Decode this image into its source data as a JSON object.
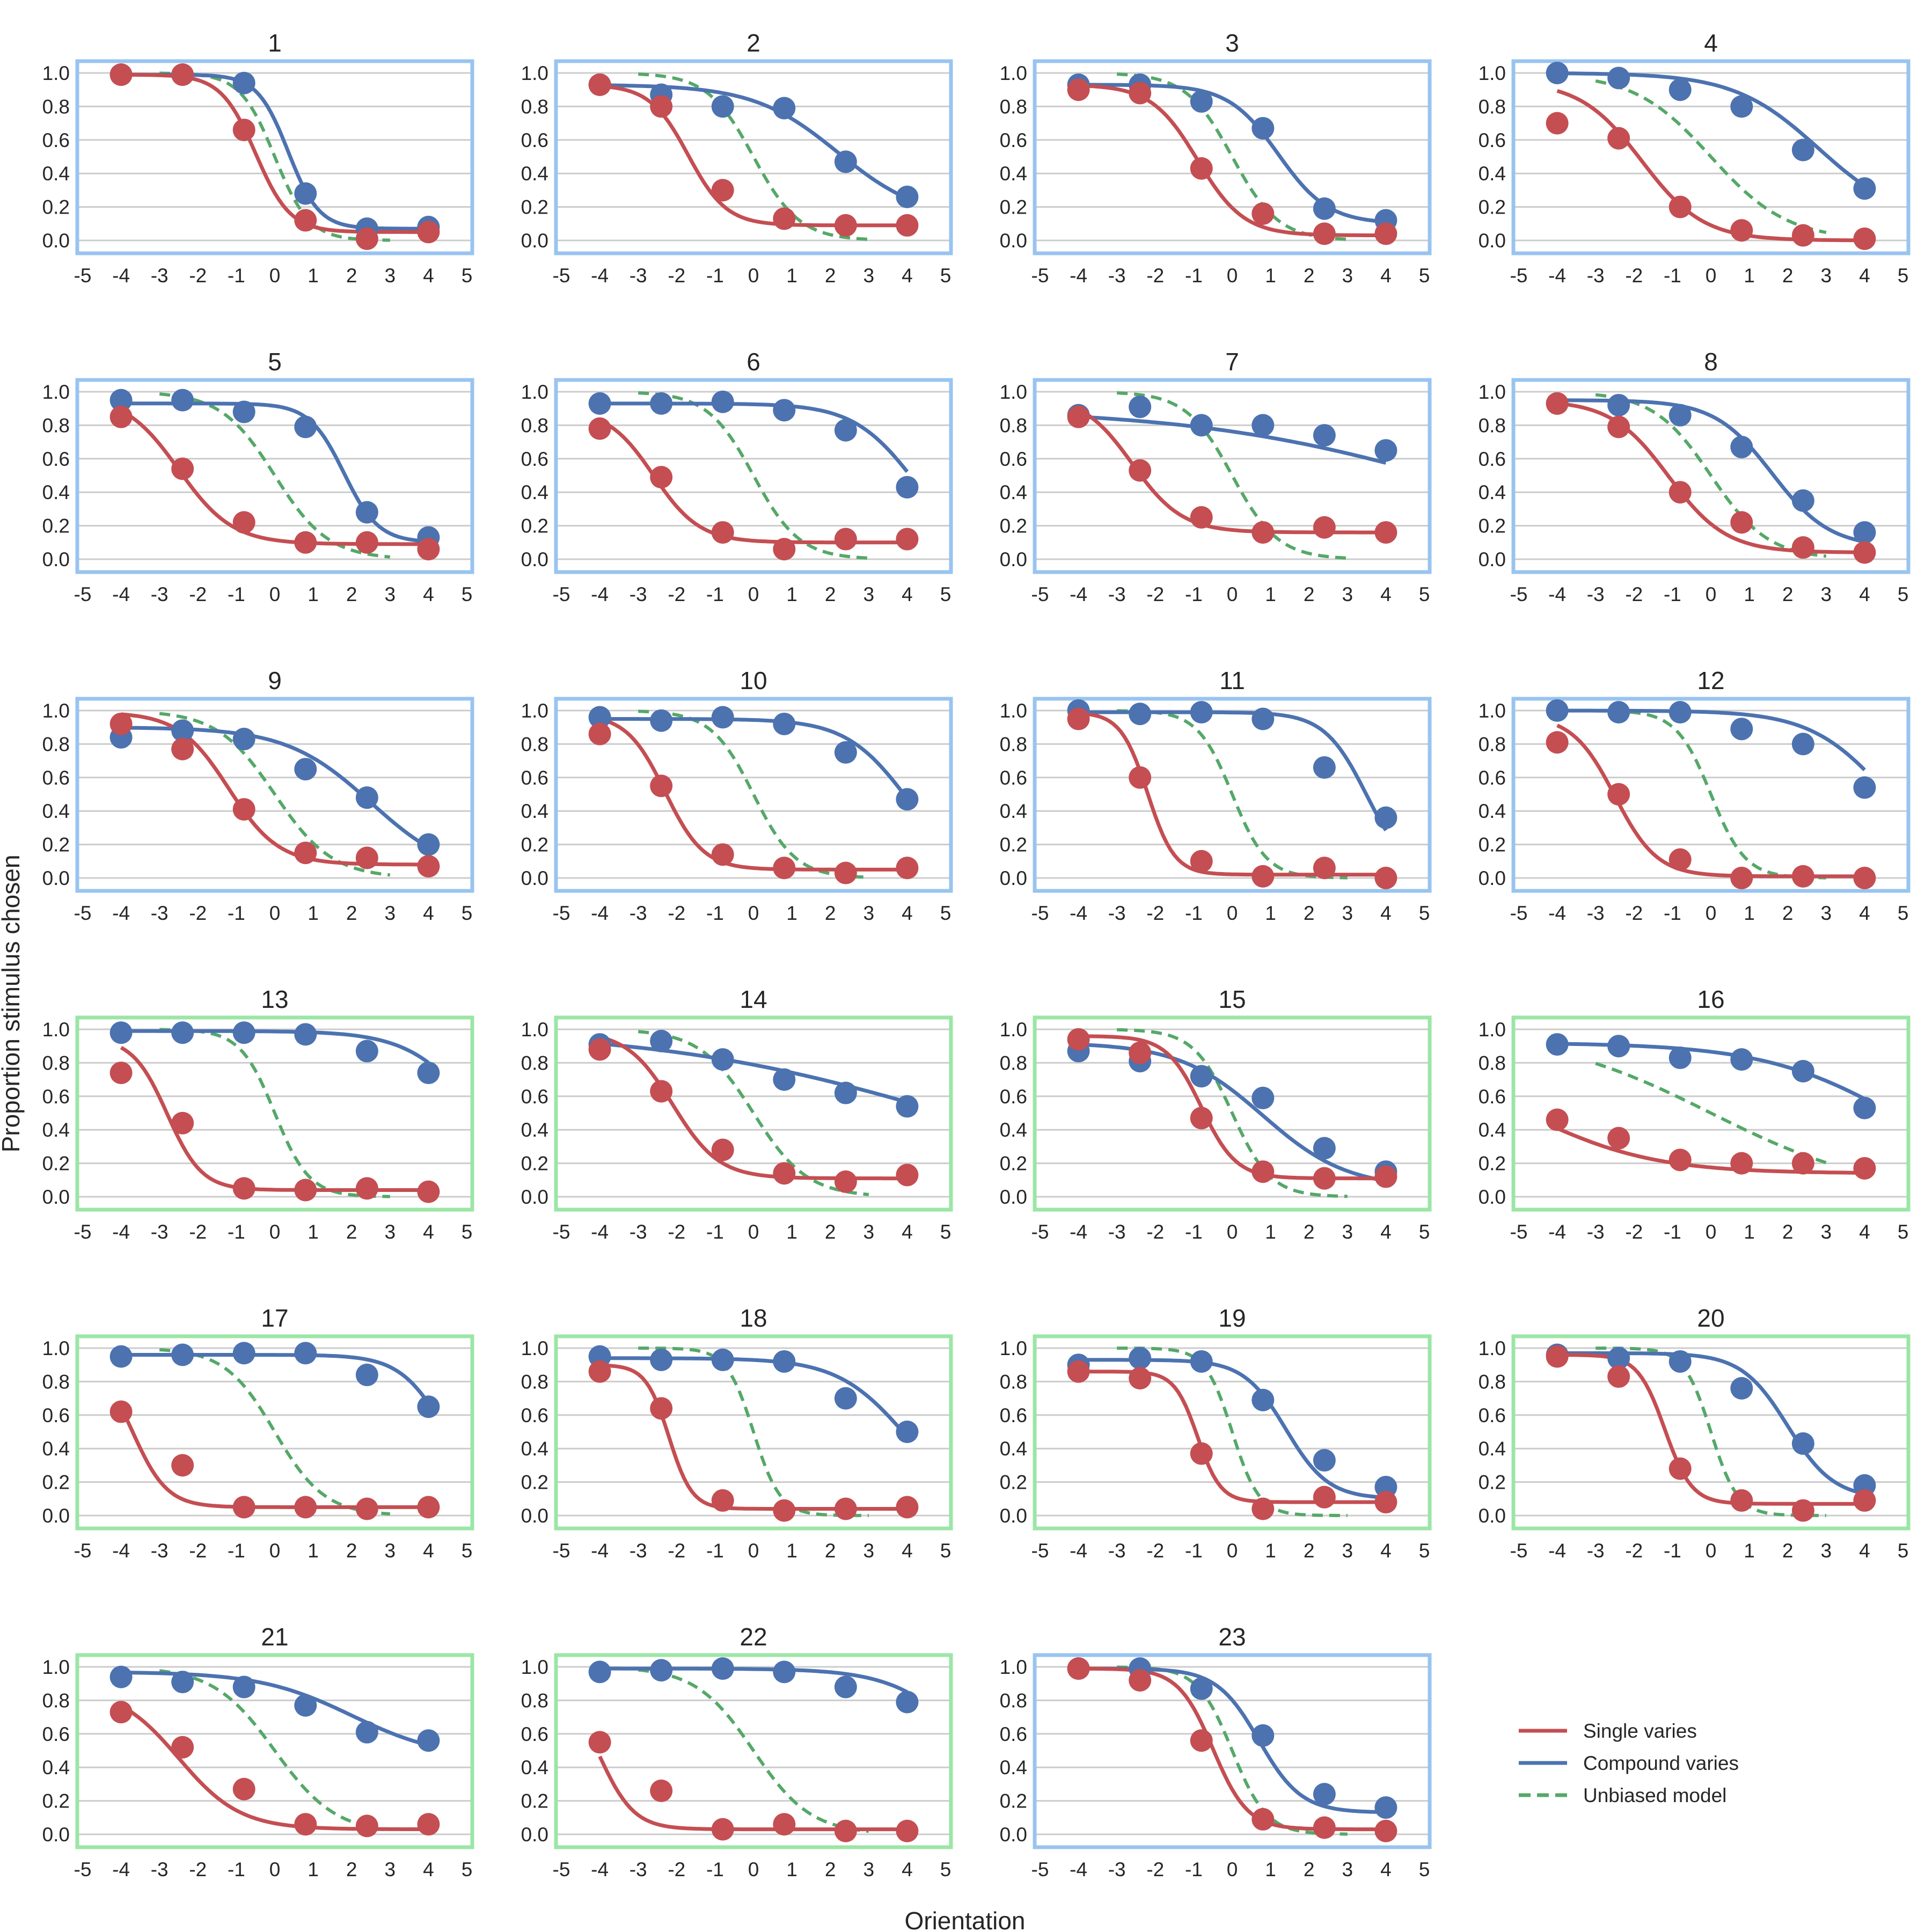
{
  "chart_data": {
    "type": "line",
    "description_free": true,
    "xlabel": "Orientation",
    "ylabel": "Proportion stimulus chosen",
    "xlim": [
      -5,
      5
    ],
    "ylim": [
      0,
      1
    ],
    "x_ticks": [
      -5,
      -4,
      -3,
      -2,
      -1,
      0,
      1,
      2,
      3,
      4,
      5
    ],
    "y_ticks": [
      0.0,
      0.2,
      0.4,
      0.6,
      0.8,
      1.0
    ],
    "grid": "horizontal",
    "legend_position": "bottom-right",
    "legend": [
      {
        "key": "single",
        "label": "Single varies",
        "color": "#c44e52",
        "style": "solid"
      },
      {
        "key": "compound",
        "label": "Compound varies",
        "color": "#4c72b0",
        "style": "solid"
      },
      {
        "key": "unbiased",
        "label": "Unbiased model",
        "color": "#55a868",
        "style": "dashed"
      }
    ],
    "frame_colors": {
      "blue": "#99c4f0",
      "green": "#9be6a6"
    },
    "x_points": [
      -4,
      -2.4,
      -0.8,
      0.8,
      2.4,
      4
    ],
    "panels": [
      {
        "title": "1",
        "frame": "blue",
        "single": [
          0.99,
          0.99,
          0.66,
          0.12,
          0.01,
          0.05
        ],
        "compound": [
          0.99,
          0.99,
          0.94,
          0.28,
          0.07,
          0.08
        ],
        "fit_single": [
          0.99,
          0.05,
          -0.5,
          0.45
        ],
        "fit_compound": [
          0.99,
          0.07,
          0.35,
          0.4
        ],
        "unbiased": [
          -3.0,
          3.0,
          0.0,
          0.45
        ]
      },
      {
        "title": "2",
        "frame": "blue",
        "single": [
          0.93,
          0.8,
          0.3,
          0.13,
          0.09,
          0.09
        ],
        "compound": [
          0.93,
          0.87,
          0.8,
          0.79,
          0.47,
          0.26
        ],
        "fit_single": [
          0.93,
          0.09,
          -1.7,
          0.5
        ],
        "fit_compound": [
          0.93,
          0.12,
          2.2,
          1.1
        ],
        "unbiased": [
          -3.0,
          3.0,
          0.0,
          0.6
        ]
      },
      {
        "title": "3",
        "frame": "blue",
        "single": [
          0.9,
          0.88,
          0.43,
          0.16,
          0.04,
          0.04
        ],
        "compound": [
          0.93,
          0.93,
          0.83,
          0.67,
          0.19,
          0.12
        ],
        "fit_single": [
          0.93,
          0.03,
          -0.9,
          0.6
        ],
        "fit_compound": [
          0.93,
          0.1,
          1.2,
          0.65
        ],
        "unbiased": [
          -3.0,
          3.0,
          0.0,
          0.6
        ]
      },
      {
        "title": "4",
        "frame": "blue",
        "single": [
          0.7,
          0.61,
          0.2,
          0.06,
          0.03,
          0.01
        ],
        "compound": [
          1.0,
          0.97,
          0.9,
          0.8,
          0.54,
          0.31
        ],
        "fit_single": [
          0.95,
          0.0,
          -1.8,
          0.8
        ],
        "fit_compound": [
          1.0,
          0.1,
          2.8,
          1.1
        ],
        "unbiased": [
          -3.0,
          3.0,
          0.0,
          1.0
        ]
      },
      {
        "title": "5",
        "frame": "blue",
        "single": [
          0.85,
          0.54,
          0.22,
          0.1,
          0.1,
          0.06
        ],
        "compound": [
          0.95,
          0.95,
          0.88,
          0.79,
          0.28,
          0.13
        ],
        "fit_single": [
          0.98,
          0.09,
          -2.5,
          0.7
        ],
        "fit_compound": [
          0.93,
          0.1,
          1.8,
          0.45
        ],
        "unbiased": [
          -3.0,
          3.0,
          0.0,
          0.7
        ]
      },
      {
        "title": "6",
        "frame": "blue",
        "single": [
          0.78,
          0.49,
          0.16,
          0.06,
          0.12,
          0.12
        ],
        "compound": [
          0.93,
          0.93,
          0.94,
          0.89,
          0.77,
          0.43
        ],
        "fit_single": [
          0.9,
          0.1,
          -2.6,
          0.6
        ],
        "fit_compound": [
          0.93,
          0.0,
          4.2,
          0.8
        ],
        "unbiased": [
          -3.0,
          3.0,
          0.0,
          0.6
        ]
      },
      {
        "title": "7",
        "frame": "blue",
        "single": [
          0.85,
          0.53,
          0.25,
          0.16,
          0.19,
          0.16
        ],
        "compound": [
          0.86,
          0.91,
          0.8,
          0.8,
          0.74,
          0.65
        ],
        "fit_single": [
          0.98,
          0.16,
          -2.6,
          0.65
        ],
        "fit_compound": [
          0.9,
          0.0,
          6.0,
          3.5
        ],
        "unbiased": [
          -3.0,
          3.0,
          0.0,
          0.6
        ]
      },
      {
        "title": "8",
        "frame": "blue",
        "single": [
          0.93,
          0.79,
          0.4,
          0.22,
          0.07,
          0.04
        ],
        "compound": [
          0.93,
          0.92,
          0.86,
          0.67,
          0.35,
          0.16
        ],
        "fit_single": [
          0.95,
          0.04,
          -1.1,
          0.75
        ],
        "fit_compound": [
          0.95,
          0.07,
          1.6,
          0.75
        ],
        "unbiased": [
          -3.0,
          3.0,
          0.0,
          0.75
        ]
      },
      {
        "title": "9",
        "frame": "blue",
        "single": [
          0.92,
          0.77,
          0.41,
          0.15,
          0.12,
          0.07
        ],
        "compound": [
          0.84,
          0.88,
          0.83,
          0.65,
          0.48,
          0.2
        ],
        "fit_single": [
          0.99,
          0.08,
          -1.2,
          0.65
        ],
        "fit_compound": [
          0.9,
          0.0,
          2.5,
          1.1
        ],
        "unbiased": [
          -3.0,
          3.0,
          0.0,
          0.75
        ]
      },
      {
        "title": "10",
        "frame": "blue",
        "single": [
          0.86,
          0.55,
          0.14,
          0.06,
          0.03,
          0.06
        ],
        "compound": [
          0.96,
          0.94,
          0.96,
          0.92,
          0.75,
          0.47
        ],
        "fit_single": [
          0.98,
          0.05,
          -2.3,
          0.5
        ],
        "fit_compound": [
          0.95,
          0.0,
          4.0,
          0.8
        ],
        "unbiased": [
          -3.0,
          3.0,
          0.0,
          0.55
        ]
      },
      {
        "title": "11",
        "frame": "blue",
        "single": [
          0.95,
          0.6,
          0.1,
          0.01,
          0.06,
          0.0
        ],
        "compound": [
          1.0,
          0.98,
          0.99,
          0.95,
          0.66,
          0.36
        ],
        "fit_single": [
          0.99,
          0.02,
          -2.2,
          0.35
        ],
        "fit_compound": [
          0.99,
          0.0,
          3.5,
          0.55
        ],
        "unbiased": [
          -3.0,
          3.0,
          0.0,
          0.45
        ]
      },
      {
        "title": "12",
        "frame": "blue",
        "single": [
          0.81,
          0.5,
          0.11,
          0.0,
          0.01,
          0.0
        ],
        "compound": [
          1.0,
          0.99,
          0.99,
          0.89,
          0.8,
          0.54
        ],
        "fit_single": [
          0.97,
          0.01,
          -2.5,
          0.55
        ],
        "fit_compound": [
          1.0,
          0.0,
          4.6,
          1.0
        ],
        "unbiased": [
          -3.0,
          3.0,
          0.0,
          0.45
        ]
      },
      {
        "title": "13",
        "frame": "green",
        "single": [
          0.74,
          0.44,
          0.05,
          0.04,
          0.05,
          0.03
        ],
        "compound": [
          0.98,
          0.98,
          0.98,
          0.97,
          0.87,
          0.74
        ],
        "fit_single": [
          0.95,
          0.04,
          -2.8,
          0.45
        ],
        "fit_compound": [
          0.99,
          0.0,
          5.3,
          0.9
        ],
        "unbiased": [
          -3.0,
          3.0,
          0.0,
          0.45
        ]
      },
      {
        "title": "14",
        "frame": "green",
        "single": [
          0.88,
          0.63,
          0.28,
          0.14,
          0.09,
          0.13
        ],
        "compound": [
          0.91,
          0.93,
          0.82,
          0.7,
          0.62,
          0.54
        ],
        "fit_single": [
          0.99,
          0.11,
          -2.1,
          0.6
        ],
        "fit_compound": [
          1.0,
          0.0,
          5.0,
          3.8
        ],
        "unbiased": [
          -3.0,
          3.0,
          0.0,
          0.7
        ]
      },
      {
        "title": "15",
        "frame": "green",
        "single": [
          0.94,
          0.86,
          0.47,
          0.15,
          0.11,
          0.12
        ],
        "compound": [
          0.87,
          0.81,
          0.72,
          0.59,
          0.29,
          0.15
        ],
        "fit_single": [
          0.96,
          0.11,
          -0.8,
          0.45
        ],
        "fit_compound": [
          0.92,
          0.05,
          0.8,
          1.1
        ],
        "unbiased": [
          -3.0,
          3.0,
          0.0,
          0.5
        ]
      },
      {
        "title": "16",
        "frame": "green",
        "single": [
          0.46,
          0.35,
          0.22,
          0.2,
          0.2,
          0.17
        ],
        "compound": [
          0.91,
          0.9,
          0.83,
          0.82,
          0.75,
          0.53
        ],
        "fit_single": [
          0.8,
          0.14,
          -4.6,
          1.6
        ],
        "fit_compound": [
          0.92,
          0.0,
          5.0,
          1.8
        ],
        "unbiased": [
          -3.0,
          3.0,
          0.0,
          2.2
        ]
      },
      {
        "title": "17",
        "frame": "green",
        "single": [
          0.62,
          0.3,
          0.05,
          0.05,
          0.04,
          0.05
        ],
        "compound": [
          0.95,
          0.96,
          0.97,
          0.97,
          0.84,
          0.65
        ],
        "fit_single": [
          0.95,
          0.05,
          -3.7,
          0.45
        ],
        "fit_compound": [
          0.96,
          0.0,
          4.5,
          0.6
        ],
        "unbiased": [
          -3.0,
          3.0,
          0.0,
          0.65
        ]
      },
      {
        "title": "18",
        "frame": "green",
        "single": [
          0.86,
          0.64,
          0.09,
          0.03,
          0.04,
          0.05
        ],
        "compound": [
          0.95,
          0.93,
          0.93,
          0.92,
          0.7,
          0.5
        ],
        "fit_single": [
          0.9,
          0.04,
          -2.2,
          0.3
        ],
        "fit_compound": [
          0.94,
          0.0,
          4.0,
          0.9
        ],
        "unbiased": [
          -3.0,
          3.0,
          0.0,
          0.35
        ]
      },
      {
        "title": "19",
        "frame": "green",
        "single": [
          0.86,
          0.82,
          0.37,
          0.04,
          0.11,
          0.08
        ],
        "compound": [
          0.9,
          0.94,
          0.92,
          0.69,
          0.33,
          0.17
        ],
        "fit_single": [
          0.86,
          0.08,
          -0.9,
          0.3
        ],
        "fit_compound": [
          0.93,
          0.1,
          1.4,
          0.55
        ],
        "unbiased": [
          -3.0,
          3.0,
          0.0,
          0.35
        ]
      },
      {
        "title": "20",
        "frame": "green",
        "single": [
          0.95,
          0.83,
          0.28,
          0.09,
          0.03,
          0.09
        ],
        "compound": [
          0.96,
          0.94,
          0.92,
          0.76,
          0.43,
          0.18
        ],
        "fit_single": [
          0.96,
          0.07,
          -1.2,
          0.35
        ],
        "fit_compound": [
          0.97,
          0.1,
          2.0,
          0.6
        ],
        "unbiased": [
          -3.0,
          3.0,
          0.0,
          0.35
        ]
      },
      {
        "title": "21",
        "frame": "green",
        "single": [
          0.73,
          0.52,
          0.27,
          0.06,
          0.05,
          0.06
        ],
        "compound": [
          0.94,
          0.91,
          0.88,
          0.77,
          0.61,
          0.56
        ],
        "fit_single": [
          0.88,
          0.03,
          -2.5,
          0.8
        ],
        "fit_compound": [
          0.97,
          0.45,
          2.0,
          1.2
        ],
        "unbiased": [
          -3.0,
          3.0,
          0.0,
          0.8
        ]
      },
      {
        "title": "22",
        "frame": "green",
        "single": [
          0.55,
          0.26,
          0.03,
          0.06,
          0.02,
          0.02
        ],
        "compound": [
          0.97,
          0.98,
          0.99,
          0.97,
          0.88,
          0.79
        ],
        "fit_single": [
          0.9,
          0.03,
          -4.0,
          0.45
        ],
        "fit_compound": [
          0.99,
          0.0,
          5.8,
          1.0
        ],
        "unbiased": [
          -3.0,
          3.0,
          0.0,
          0.75
        ]
      },
      {
        "title": "23",
        "frame": "blue",
        "single": [
          0.99,
          0.92,
          0.56,
          0.09,
          0.04,
          0.02
        ],
        "compound": [
          0.99,
          0.99,
          0.87,
          0.59,
          0.24,
          0.16
        ],
        "fit_single": [
          0.99,
          0.03,
          -0.5,
          0.45
        ],
        "fit_compound": [
          0.99,
          0.13,
          0.7,
          0.55
        ],
        "unbiased": [
          -3.0,
          3.0,
          0.0,
          0.45
        ]
      }
    ]
  }
}
